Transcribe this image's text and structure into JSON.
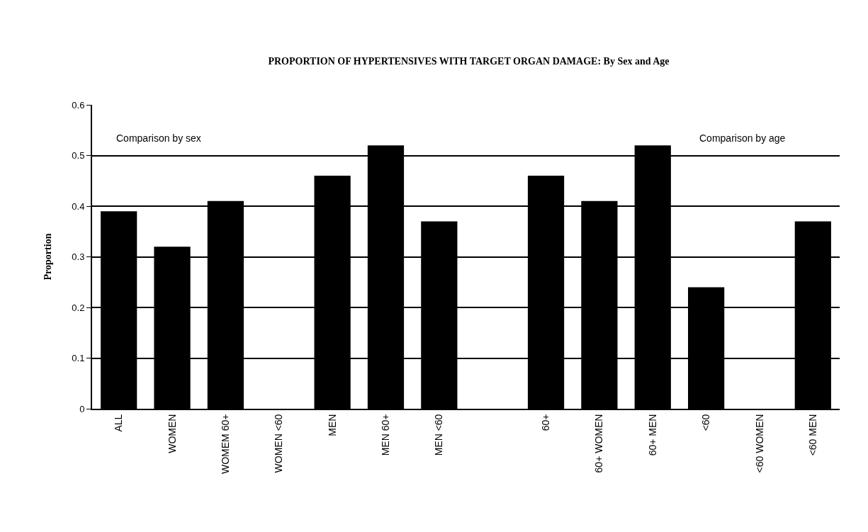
{
  "chart_data": {
    "type": "bar",
    "title": "PROPORTION OF HYPERTENSIVES WITH TARGET ORGAN DAMAGE: By Sex and Age",
    "ylabel": "Proportion",
    "categories": [
      "ALL",
      "WOMEN",
      "WOMEM 60+",
      "WOMEN <60",
      "MEN",
      "MEN 60+",
      "MEN <60",
      null,
      "60+",
      "60+ WOMEN",
      "60+ MEN",
      "<60",
      "<60 WOMEN",
      "<60 MEN"
    ],
    "values": [
      0.39,
      0.32,
      0.41,
      null,
      0.46,
      0.52,
      0.37,
      null,
      0.46,
      0.41,
      0.52,
      0.24,
      null,
      0.37
    ],
    "color": "#000000",
    "ylim": [
      0,
      0.6
    ],
    "yticks": [
      {
        "value": 0,
        "label": "0"
      },
      0.1,
      0.2,
      0.3,
      0.4,
      0.5,
      0.6
    ],
    "grid": "y",
    "annotations": [
      "Comparison by sex",
      "Comparison by age"
    ]
  }
}
